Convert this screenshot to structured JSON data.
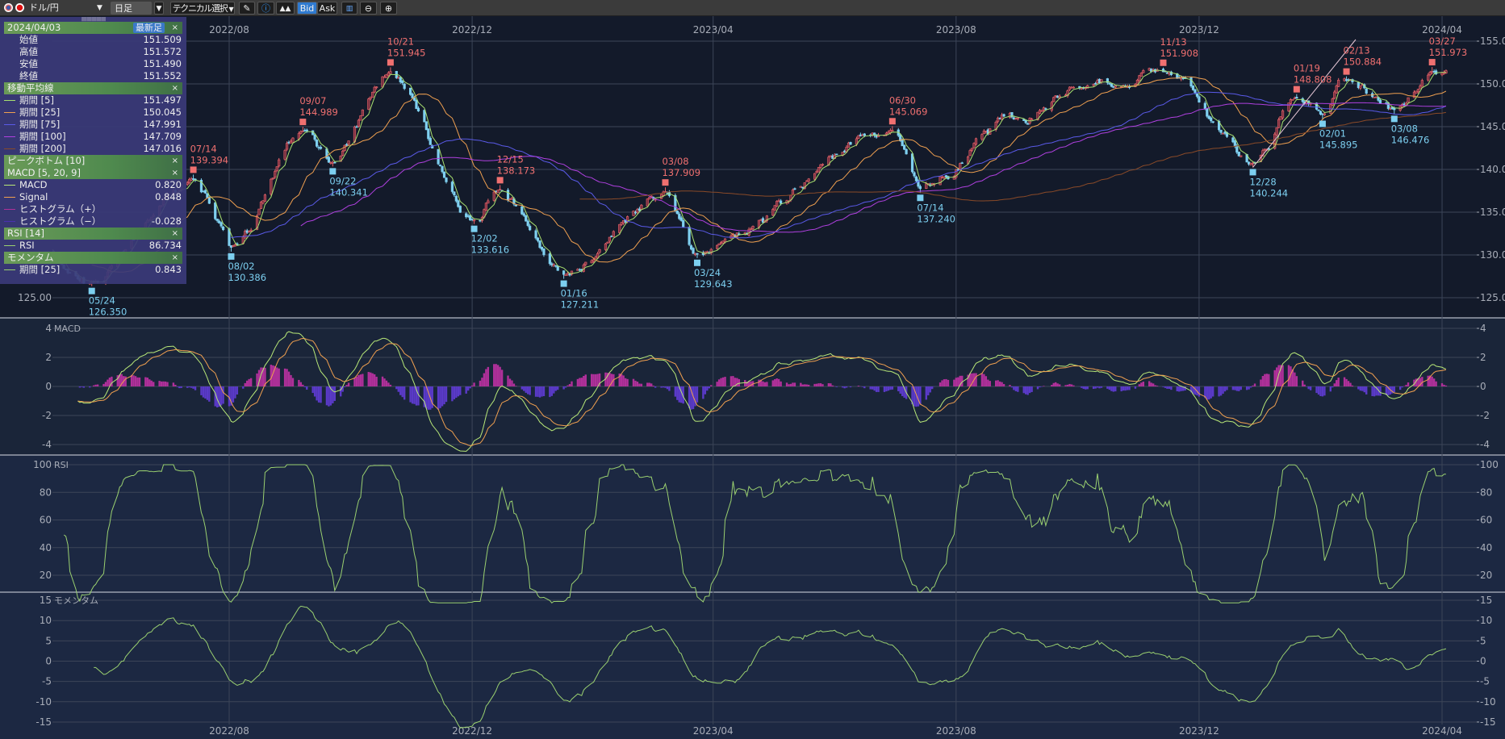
{
  "toolbar": {
    "pair": "ドル/円",
    "timeframe": "日足",
    "technical": "テクニカル選択",
    "bid": "Bid",
    "ask": "Ask",
    "icons": [
      "us-flag-icon",
      "jp-flag-icon",
      "pencil-icon",
      "info-icon",
      "mountain-chart-icon",
      "depth-icon",
      "zoom-out-icon",
      "zoom-in-icon"
    ]
  },
  "info_panel": {
    "date": "2024/04/03",
    "latest_label": "最新足",
    "close_x": "×",
    "ohlc": [
      {
        "label": "始値",
        "value": "151.509"
      },
      {
        "label": "高値",
        "value": "151.572"
      },
      {
        "label": "安値",
        "value": "151.490"
      },
      {
        "label": "終値",
        "value": "151.552"
      }
    ],
    "ma_title": "移動平均線",
    "ma": [
      {
        "label": "期間 [5]",
        "value": "151.497",
        "color": "#a8e070"
      },
      {
        "label": "期間 [25]",
        "value": "150.045",
        "color": "#f0a050"
      },
      {
        "label": "期間 [75]",
        "value": "147.991",
        "color": "#5a5ae8"
      },
      {
        "label": "期間 [100]",
        "value": "147.709",
        "color": "#b040e0"
      },
      {
        "label": "期間 [200]",
        "value": "147.016",
        "color": "#8a4a28"
      }
    ],
    "peak_title": "ピークボトム [10]",
    "macd_title": "MACD [5, 20, 9]",
    "macd": [
      {
        "label": "MACD",
        "value": "0.820",
        "color": "#b8e878"
      },
      {
        "label": "Signal",
        "value": "0.848",
        "color": "#f0a050"
      },
      {
        "label": "ヒストグラム（+）",
        "value": "",
        "color": "#b0309a"
      },
      {
        "label": "ヒストグラム（−）",
        "value": "-0.028",
        "color": "#4a30b0"
      }
    ],
    "rsi_title": "RSI [14]",
    "rsi": [
      {
        "label": "RSI",
        "value": "86.734",
        "color": "#9ad070"
      }
    ],
    "mom_title": "モメンタム",
    "mom": [
      {
        "label": "期間 [25]",
        "value": "0.843",
        "color": "#9ad070"
      }
    ]
  },
  "chart_data": {
    "type": "candlestick",
    "x_ticks": [
      "2022/08",
      "2022/12",
      "2023/04",
      "2023/08",
      "2023/12",
      "2024/04"
    ],
    "price_axis": {
      "ylim": [
        123,
        156
      ],
      "ticks": [
        "155.00",
        "150.00",
        "145.00",
        "140.00",
        "135.00",
        "130.00",
        "125.00"
      ]
    },
    "colors": {
      "up": "#e8646a",
      "down": "#7fd0f0"
    },
    "peak_bottom": [
      {
        "date": "2022-05-24",
        "label": "05/24",
        "value": "126.350",
        "type": "bottom"
      },
      {
        "date": "2022-07-14",
        "label": "07/14",
        "value": "139.394",
        "type": "peak"
      },
      {
        "date": "2022-08-02",
        "label": "08/02",
        "value": "130.386",
        "type": "bottom"
      },
      {
        "date": "2022-09-07",
        "label": "09/07",
        "value": "144.989",
        "type": "peak"
      },
      {
        "date": "2022-09-22",
        "label": "09/22",
        "value": "140.341",
        "type": "bottom"
      },
      {
        "date": "2022-10-21",
        "label": "10/21",
        "value": "151.945",
        "type": "peak"
      },
      {
        "date": "2022-12-02",
        "label": "12/02",
        "value": "133.616",
        "type": "bottom"
      },
      {
        "date": "2022-12-15",
        "label": "12/15",
        "value": "138.173",
        "type": "peak"
      },
      {
        "date": "2023-01-16",
        "label": "01/16",
        "value": "127.211",
        "type": "bottom"
      },
      {
        "date": "2023-03-08",
        "label": "03/08",
        "value": "137.909",
        "type": "peak"
      },
      {
        "date": "2023-03-24",
        "label": "03/24",
        "value": "129.643",
        "type": "bottom"
      },
      {
        "date": "2023-06-30",
        "label": "06/30",
        "value": "145.069",
        "type": "peak"
      },
      {
        "date": "2023-07-14",
        "label": "07/14",
        "value": "137.240",
        "type": "bottom"
      },
      {
        "date": "2023-11-13",
        "label": "11/13",
        "value": "151.908",
        "type": "peak"
      },
      {
        "date": "2023-12-28",
        "label": "12/28",
        "value": "140.244",
        "type": "bottom"
      },
      {
        "date": "2024-01-19",
        "label": "01/19",
        "value": "148.808",
        "type": "peak"
      },
      {
        "date": "2024-02-01",
        "label": "02/01",
        "value": "145.895",
        "type": "bottom"
      },
      {
        "date": "2024-02-13",
        "label": "02/13",
        "value": "150.884",
        "type": "peak"
      },
      {
        "date": "2024-03-08",
        "label": "03/08",
        "value": "146.476",
        "type": "bottom"
      },
      {
        "date": "2024-03-27",
        "label": "03/27",
        "value": "151.973",
        "type": "peak"
      }
    ],
    "path": [
      [
        "2022-04-20",
        128.5
      ],
      [
        "2022-04-28",
        131
      ],
      [
        "2023-09-01",
        146
      ],
      [
        "2023-10-03",
        149.5
      ],
      [
        "2023-10-20",
        149.8
      ],
      [
        "2024-04-03",
        151.55
      ]
    ],
    "macd_axis": {
      "ylim": [
        -4.7,
        4.7
      ],
      "ticks": [
        "4",
        "2",
        "0",
        "-2",
        "-4"
      ],
      "title": "MACD"
    },
    "rsi_axis": {
      "ylim": [
        13,
        106
      ],
      "ticks": [
        "100",
        "80",
        "60",
        "40",
        "20"
      ],
      "title": "RSI"
    },
    "mom_axis": {
      "ylim": [
        -17,
        17
      ],
      "ticks": [
        "15",
        "10",
        "5",
        "0",
        "-5",
        "-10",
        "-15"
      ],
      "title": "モメンタム"
    }
  }
}
